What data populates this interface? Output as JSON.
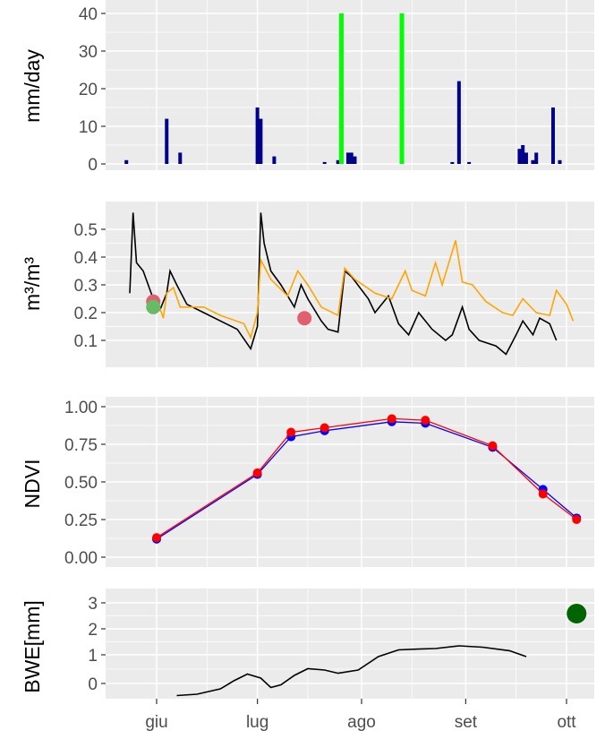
{
  "chart_data": [
    {
      "type": "bar",
      "ylabel": "mm/day",
      "ylim": [
        0,
        40
      ],
      "yticks": [
        "0",
        "10",
        "20",
        "30",
        "40"
      ],
      "grid": true,
      "series": [
        {
          "color": "#00008b",
          "points": [
            {
              "x": "2023-05-23",
              "y": 1
            },
            {
              "x": "2023-06-04",
              "y": 12
            },
            {
              "x": "2023-06-08",
              "y": 3
            },
            {
              "x": "2023-07-01",
              "y": 15
            },
            {
              "x": "2023-07-02",
              "y": 12
            },
            {
              "x": "2023-07-06",
              "y": 2
            },
            {
              "x": "2023-07-21",
              "y": 0.5
            },
            {
              "x": "2023-07-25",
              "y": 1
            },
            {
              "x": "2023-07-28",
              "y": 3
            },
            {
              "x": "2023-07-29",
              "y": 3
            },
            {
              "x": "2023-07-30",
              "y": 2
            },
            {
              "x": "2023-08-28",
              "y": 0.5
            },
            {
              "x": "2023-08-30",
              "y": 22
            },
            {
              "x": "2023-09-02",
              "y": 0.5
            },
            {
              "x": "2023-09-17",
              "y": 4
            },
            {
              "x": "2023-09-18",
              "y": 5
            },
            {
              "x": "2023-09-19",
              "y": 3
            },
            {
              "x": "2023-09-21",
              "y": 1
            },
            {
              "x": "2023-09-22",
              "y": 3
            },
            {
              "x": "2023-09-27",
              "y": 15
            },
            {
              "x": "2023-09-29",
              "y": 1
            }
          ]
        },
        {
          "color": "#00ff00",
          "points": [
            {
              "x": "2023-07-26",
              "y": 40
            },
            {
              "x": "2023-08-13",
              "y": 40
            }
          ]
        }
      ]
    },
    {
      "type": "line",
      "ylabel": "m³/m³",
      "ylim": [
        0.05,
        0.55
      ],
      "yticks": [
        "0.1",
        "0.2",
        "0.3",
        "0.4",
        "0.5"
      ],
      "grid": true,
      "series": [
        {
          "color": "#000000",
          "points": [
            {
              "x": "2023-05-24",
              "y": 0.27
            },
            {
              "x": "2023-05-25",
              "y": 0.56
            },
            {
              "x": "2023-05-26",
              "y": 0.38
            },
            {
              "x": "2023-05-28",
              "y": 0.35
            },
            {
              "x": "2023-05-31",
              "y": 0.25
            },
            {
              "x": "2023-06-02",
              "y": 0.21
            },
            {
              "x": "2023-06-04",
              "y": 0.27
            },
            {
              "x": "2023-06-05",
              "y": 0.35
            },
            {
              "x": "2023-06-07",
              "y": 0.3
            },
            {
              "x": "2023-06-10",
              "y": 0.23
            },
            {
              "x": "2023-06-15",
              "y": 0.2
            },
            {
              "x": "2023-06-20",
              "y": 0.17
            },
            {
              "x": "2023-06-25",
              "y": 0.14
            },
            {
              "x": "2023-06-29",
              "y": 0.07
            },
            {
              "x": "2023-07-01",
              "y": 0.15
            },
            {
              "x": "2023-07-02",
              "y": 0.56
            },
            {
              "x": "2023-07-03",
              "y": 0.45
            },
            {
              "x": "2023-07-05",
              "y": 0.35
            },
            {
              "x": "2023-07-08",
              "y": 0.3
            },
            {
              "x": "2023-07-12",
              "y": 0.22
            },
            {
              "x": "2023-07-14",
              "y": 0.3
            },
            {
              "x": "2023-07-16",
              "y": 0.25
            },
            {
              "x": "2023-07-20",
              "y": 0.17
            },
            {
              "x": "2023-07-22",
              "y": 0.14
            },
            {
              "x": "2023-07-25",
              "y": 0.13
            },
            {
              "x": "2023-07-27",
              "y": 0.35
            },
            {
              "x": "2023-07-29",
              "y": 0.33
            },
            {
              "x": "2023-08-03",
              "y": 0.25
            },
            {
              "x": "2023-08-05",
              "y": 0.2
            },
            {
              "x": "2023-08-09",
              "y": 0.26
            },
            {
              "x": "2023-08-12",
              "y": 0.16
            },
            {
              "x": "2023-08-15",
              "y": 0.12
            },
            {
              "x": "2023-08-18",
              "y": 0.2
            },
            {
              "x": "2023-08-22",
              "y": 0.14
            },
            {
              "x": "2023-08-26",
              "y": 0.1
            },
            {
              "x": "2023-08-28",
              "y": 0.12
            },
            {
              "x": "2023-08-31",
              "y": 0.22
            },
            {
              "x": "2023-09-02",
              "y": 0.14
            },
            {
              "x": "2023-09-05",
              "y": 0.1
            },
            {
              "x": "2023-09-10",
              "y": 0.08
            },
            {
              "x": "2023-09-13",
              "y": 0.05
            },
            {
              "x": "2023-09-16",
              "y": 0.12
            },
            {
              "x": "2023-09-18",
              "y": 0.17
            },
            {
              "x": "2023-09-21",
              "y": 0.12
            },
            {
              "x": "2023-09-23",
              "y": 0.18
            },
            {
              "x": "2023-09-26",
              "y": 0.16
            },
            {
              "x": "2023-09-28",
              "y": 0.1
            }
          ]
        },
        {
          "color": "#ffa500",
          "points": [
            {
              "x": "2023-06-01",
              "y": 0.25
            },
            {
              "x": "2023-06-03",
              "y": 0.18
            },
            {
              "x": "2023-06-04",
              "y": 0.27
            },
            {
              "x": "2023-06-06",
              "y": 0.29
            },
            {
              "x": "2023-06-08",
              "y": 0.22
            },
            {
              "x": "2023-06-15",
              "y": 0.22
            },
            {
              "x": "2023-06-20",
              "y": 0.19
            },
            {
              "x": "2023-06-27",
              "y": 0.16
            },
            {
              "x": "2023-06-29",
              "y": 0.11
            },
            {
              "x": "2023-07-01",
              "y": 0.2
            },
            {
              "x": "2023-07-02",
              "y": 0.39
            },
            {
              "x": "2023-07-05",
              "y": 0.32
            },
            {
              "x": "2023-07-10",
              "y": 0.26
            },
            {
              "x": "2023-07-13",
              "y": 0.35
            },
            {
              "x": "2023-07-16",
              "y": 0.3
            },
            {
              "x": "2023-07-20",
              "y": 0.22
            },
            {
              "x": "2023-07-25",
              "y": 0.19
            },
            {
              "x": "2023-07-27",
              "y": 0.36
            },
            {
              "x": "2023-07-30",
              "y": 0.32
            },
            {
              "x": "2023-08-05",
              "y": 0.27
            },
            {
              "x": "2023-08-10",
              "y": 0.25
            },
            {
              "x": "2023-08-14",
              "y": 0.35
            },
            {
              "x": "2023-08-16",
              "y": 0.28
            },
            {
              "x": "2023-08-20",
              "y": 0.26
            },
            {
              "x": "2023-08-23",
              "y": 0.38
            },
            {
              "x": "2023-08-25",
              "y": 0.3
            },
            {
              "x": "2023-08-29",
              "y": 0.46
            },
            {
              "x": "2023-08-31",
              "y": 0.31
            },
            {
              "x": "2023-09-03",
              "y": 0.3
            },
            {
              "x": "2023-09-07",
              "y": 0.24
            },
            {
              "x": "2023-09-12",
              "y": 0.2
            },
            {
              "x": "2023-09-15",
              "y": 0.19
            },
            {
              "x": "2023-09-18",
              "y": 0.25
            },
            {
              "x": "2023-09-22",
              "y": 0.2
            },
            {
              "x": "2023-09-26",
              "y": 0.19
            },
            {
              "x": "2023-09-28",
              "y": 0.28
            },
            {
              "x": "2023-10-01",
              "y": 0.23
            },
            {
              "x": "2023-10-03",
              "y": 0.17
            }
          ]
        },
        {
          "color": "#e06070",
          "markers": true,
          "points": [
            {
              "x": "2023-05-31",
              "y": 0.24
            },
            {
              "x": "2023-07-15",
              "y": 0.18
            }
          ]
        },
        {
          "color": "#66bb66",
          "markers": true,
          "points": [
            {
              "x": "2023-05-31",
              "y": 0.22
            }
          ]
        }
      ]
    },
    {
      "type": "line",
      "ylabel": "NDVI",
      "ylim": [
        0,
        1
      ],
      "yticks": [
        "0.00",
        "0.25",
        "0.50",
        "0.75",
        "1.00"
      ],
      "grid": true,
      "series": [
        {
          "color": "#0000ff",
          "markers": true,
          "points": [
            {
              "x": "2023-06-01",
              "y": 0.12
            },
            {
              "x": "2023-07-01",
              "y": 0.55
            },
            {
              "x": "2023-07-11",
              "y": 0.8
            },
            {
              "x": "2023-07-21",
              "y": 0.84
            },
            {
              "x": "2023-08-10",
              "y": 0.9
            },
            {
              "x": "2023-08-20",
              "y": 0.89
            },
            {
              "x": "2023-09-09",
              "y": 0.73
            },
            {
              "x": "2023-09-24",
              "y": 0.45
            },
            {
              "x": "2023-10-04",
              "y": 0.26
            }
          ]
        },
        {
          "color": "#ff0000",
          "markers": true,
          "points": [
            {
              "x": "2023-06-01",
              "y": 0.13
            },
            {
              "x": "2023-07-01",
              "y": 0.56
            },
            {
              "x": "2023-07-11",
              "y": 0.83
            },
            {
              "x": "2023-07-21",
              "y": 0.86
            },
            {
              "x": "2023-08-10",
              "y": 0.92
            },
            {
              "x": "2023-08-20",
              "y": 0.91
            },
            {
              "x": "2023-09-09",
              "y": 0.74
            },
            {
              "x": "2023-09-24",
              "y": 0.42
            },
            {
              "x": "2023-10-04",
              "y": 0.25
            }
          ]
        }
      ]
    },
    {
      "type": "line",
      "ylabel": "BWE[mm]",
      "ylim": [
        -0.7,
        3.2
      ],
      "yticks": [
        "0",
        "1",
        "2",
        "3"
      ],
      "grid": true,
      "series": [
        {
          "color": "#000000",
          "points": [
            {
              "x": "2023-06-07",
              "y": -0.45
            },
            {
              "x": "2023-06-13",
              "y": -0.4
            },
            {
              "x": "2023-06-20",
              "y": -0.2
            },
            {
              "x": "2023-06-24",
              "y": 0.1
            },
            {
              "x": "2023-06-28",
              "y": 0.35
            },
            {
              "x": "2023-07-02",
              "y": 0.2
            },
            {
              "x": "2023-07-05",
              "y": -0.15
            },
            {
              "x": "2023-07-08",
              "y": -0.05
            },
            {
              "x": "2023-07-12",
              "y": 0.3
            },
            {
              "x": "2023-07-16",
              "y": 0.55
            },
            {
              "x": "2023-07-21",
              "y": 0.5
            },
            {
              "x": "2023-07-25",
              "y": 0.38
            },
            {
              "x": "2023-07-31",
              "y": 0.5
            },
            {
              "x": "2023-08-06",
              "y": 1.0
            },
            {
              "x": "2023-08-12",
              "y": 1.25
            },
            {
              "x": "2023-08-18",
              "y": 1.28
            },
            {
              "x": "2023-08-23",
              "y": 1.3
            },
            {
              "x": "2023-08-30",
              "y": 1.4
            },
            {
              "x": "2023-09-06",
              "y": 1.35
            },
            {
              "x": "2023-09-14",
              "y": 1.22
            },
            {
              "x": "2023-09-19",
              "y": 1.0
            }
          ]
        },
        {
          "color": "#006400",
          "markers": true,
          "points": [
            {
              "x": "2023-10-04",
              "y": 2.6
            }
          ]
        }
      ]
    }
  ],
  "x_axis": {
    "ticks": [
      {
        "label": "giu",
        "date": "2023-06-01"
      },
      {
        "label": "lug",
        "date": "2023-07-01"
      },
      {
        "label": "ago",
        "date": "2023-08-01"
      },
      {
        "label": "set",
        "date": "2023-09-01"
      },
      {
        "label": "ott",
        "date": "2023-10-01"
      }
    ]
  }
}
